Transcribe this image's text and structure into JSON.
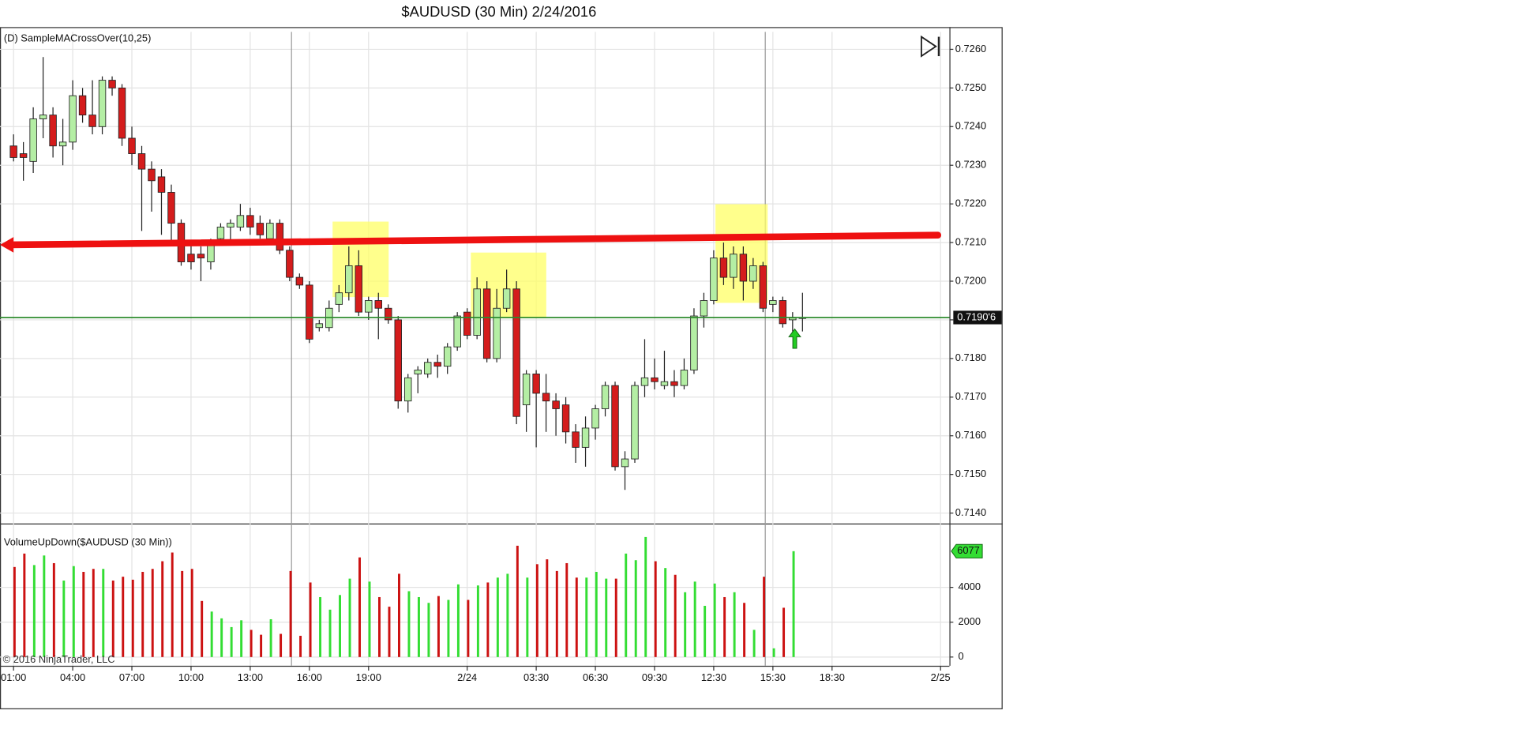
{
  "chart_data": [
    {
      "type": "candlestick",
      "title": "$AUDUSD (30 Min)  2/24/2016",
      "indicator_label": "(D) SampleMACrossOver(10,25)",
      "copyright": "© 2016 NinjaTrader, LLC",
      "categories": [
        "01:00",
        null,
        null,
        null,
        null,
        null,
        "04:00",
        null,
        null,
        null,
        null,
        null,
        "07:00",
        null,
        null,
        null,
        null,
        null,
        "10:00",
        null,
        null,
        null,
        null,
        null,
        "13:00",
        null,
        null,
        null,
        null,
        null,
        "16:00",
        null,
        null,
        null,
        null,
        null,
        "19:00",
        null,
        null,
        null,
        null,
        null,
        null,
        null,
        null,
        null,
        "2/24",
        null,
        null,
        null,
        null,
        null,
        null,
        "03:30",
        null,
        null,
        null,
        null,
        null,
        "06:30",
        null,
        null,
        null,
        null,
        null,
        "09:30",
        null,
        null,
        null,
        null,
        null,
        "12:30",
        null,
        null,
        null,
        null,
        null,
        "15:30",
        null,
        null,
        null,
        null,
        null,
        "18:30",
        null,
        null,
        null,
        null,
        null,
        null,
        null,
        null,
        null,
        null,
        "2/25"
      ],
      "open": [
        0.7235,
        0.7233,
        0.7231,
        0.7242,
        0.7243,
        0.7235,
        0.7236,
        0.7248,
        0.7243,
        0.724,
        0.7252,
        0.725,
        0.7237,
        0.7233,
        0.7229,
        0.7227,
        0.7223,
        0.7215,
        0.7207,
        0.7207,
        0.7205,
        0.7211,
        0.7214,
        0.7214,
        0.7217,
        0.7215,
        0.7211,
        0.7215,
        0.7208,
        0.7201,
        0.7199,
        0.7188,
        0.7188,
        0.7194,
        0.7197,
        0.7204,
        0.7192,
        0.7195,
        0.7193,
        0.719,
        0.7169,
        0.7176,
        0.7176,
        0.7179,
        0.7178,
        0.7183,
        0.7192,
        0.7186,
        0.7198,
        0.718,
        0.7193,
        0.7198,
        0.7168,
        0.7176,
        0.7171,
        0.7169,
        0.7168,
        0.7161,
        0.7157,
        0.7162,
        0.7167,
        0.7173,
        0.7152,
        0.7154,
        0.7173,
        0.7175,
        0.7173,
        0.7174,
        0.7173,
        0.7177,
        0.7191,
        0.7195,
        0.7206,
        0.7201,
        0.7207,
        0.72,
        0.7204,
        0.7194,
        0.7195,
        0.719,
        0.71905,
        null,
        null,
        null,
        null,
        null,
        null,
        null,
        null,
        null,
        null,
        null,
        null,
        null,
        null
      ],
      "high": [
        0.7238,
        0.7236,
        0.7245,
        0.7258,
        0.7245,
        0.7242,
        0.7252,
        0.725,
        0.7252,
        0.7253,
        0.7253,
        0.7251,
        0.724,
        0.7235,
        0.7231,
        0.7229,
        0.7225,
        0.7216,
        0.721,
        0.7209,
        0.7211,
        0.7215,
        0.7216,
        0.722,
        0.7219,
        0.7217,
        0.7216,
        0.7216,
        0.7209,
        0.7202,
        0.72,
        0.719,
        0.7195,
        0.7199,
        0.7209,
        0.7208,
        0.7196,
        0.7197,
        0.7194,
        0.7191,
        0.7176,
        0.7178,
        0.718,
        0.7181,
        0.7184,
        0.7192,
        0.7193,
        0.7201,
        0.72,
        0.7198,
        0.7203,
        0.72,
        0.7177,
        0.7177,
        0.7176,
        0.7171,
        0.717,
        0.7163,
        0.7165,
        0.7168,
        0.7174,
        0.7174,
        0.7156,
        0.7174,
        0.7185,
        0.718,
        0.7182,
        0.7177,
        0.718,
        0.7193,
        0.7197,
        0.7208,
        0.721,
        0.7209,
        0.7209,
        0.7206,
        0.7205,
        0.7196,
        0.7196,
        0.7192,
        0.7197,
        null,
        null,
        null,
        null,
        null,
        null,
        null,
        null,
        null,
        null,
        null,
        null,
        null,
        null
      ],
      "low": [
        0.7231,
        0.7226,
        0.7228,
        0.7237,
        0.7232,
        0.723,
        0.7234,
        0.7241,
        0.7238,
        0.7238,
        0.7248,
        0.7235,
        0.723,
        0.7213,
        0.7218,
        0.7212,
        0.721,
        0.7204,
        0.7203,
        0.72,
        0.7203,
        0.721,
        0.721,
        0.7213,
        0.7212,
        0.7211,
        0.721,
        0.7207,
        0.72,
        0.7198,
        0.7184,
        0.7187,
        0.7187,
        0.7192,
        0.7195,
        0.7191,
        0.719,
        0.7185,
        0.7189,
        0.7167,
        0.7166,
        0.7171,
        0.7175,
        0.7175,
        0.7176,
        0.7182,
        0.7185,
        0.7185,
        0.7179,
        0.7179,
        0.7192,
        0.7163,
        0.7161,
        0.7157,
        0.7161,
        0.716,
        0.7158,
        0.7153,
        0.7152,
        0.7159,
        0.7165,
        0.7151,
        0.7146,
        0.7153,
        0.717,
        0.7172,
        0.7172,
        0.717,
        0.7172,
        0.7176,
        0.7188,
        0.7194,
        0.7199,
        0.7198,
        0.7195,
        0.7198,
        0.7192,
        0.7192,
        0.7188,
        0.7187,
        0.7187,
        null,
        null,
        null,
        null,
        null,
        null,
        null,
        null,
        null,
        null,
        null,
        null,
        null,
        null
      ],
      "close": [
        0.7232,
        0.7232,
        0.7242,
        0.7243,
        0.7235,
        0.7236,
        0.7248,
        0.7243,
        0.724,
        0.7252,
        0.725,
        0.7237,
        0.7233,
        0.7229,
        0.7226,
        0.7223,
        0.7215,
        0.7205,
        0.7205,
        0.7206,
        0.721,
        0.7214,
        0.7215,
        0.7217,
        0.7214,
        0.7212,
        0.7215,
        0.7208,
        0.7201,
        0.7199,
        0.7185,
        0.7189,
        0.7193,
        0.7197,
        0.7204,
        0.7192,
        0.7195,
        0.7193,
        0.719,
        0.7169,
        0.7175,
        0.7177,
        0.7179,
        0.7178,
        0.7183,
        0.7191,
        0.7186,
        0.7198,
        0.718,
        0.7193,
        0.7198,
        0.7165,
        0.7176,
        0.7171,
        0.7169,
        0.7167,
        0.7161,
        0.7157,
        0.7162,
        0.7167,
        0.7173,
        0.7152,
        0.7154,
        0.7173,
        0.7175,
        0.7174,
        0.7174,
        0.7173,
        0.7177,
        0.7191,
        0.7195,
        0.7206,
        0.7201,
        0.7207,
        0.72,
        0.7204,
        0.7193,
        0.7195,
        0.7189,
        0.71905,
        0.71906,
        null,
        null,
        null,
        null,
        null,
        null,
        null,
        null,
        null,
        null,
        null,
        null,
        null,
        null
      ],
      "up_color": "#b4eea4",
      "down_color": "#d41c1c",
      "last_price": 0.71906,
      "last_price_label": "0.7190'6",
      "last_price_color": "#2e8b2e",
      "ylim": [
        0.71373,
        0.72645
      ],
      "yticks": [
        {
          "value": 0.714,
          "label": "0.7140"
        },
        {
          "value": 0.715,
          "label": "0.7150"
        },
        {
          "value": 0.716,
          "label": "0.7160"
        },
        {
          "value": 0.717,
          "label": "0.7170"
        },
        {
          "value": 0.718,
          "label": "0.7180"
        },
        {
          "value": 0.719,
          "label": "0.7190"
        },
        {
          "value": 0.72,
          "label": "0.7200"
        },
        {
          "value": 0.721,
          "label": "0.7210"
        },
        {
          "value": 0.722,
          "label": "0.7220"
        },
        {
          "value": 0.723,
          "label": "0.7230"
        },
        {
          "value": 0.724,
          "label": "0.7240"
        },
        {
          "value": 0.725,
          "label": "0.7250"
        },
        {
          "value": 0.726,
          "label": "0.7260"
        }
      ],
      "grid": true
    },
    {
      "type": "bar",
      "indicator_label": "VolumeUpDown($AUDUSD (30 Min))",
      "values": [
        5170,
        5940,
        5280,
        5830,
        5390,
        4390,
        5220,
        4890,
        5060,
        5060,
        4390,
        4610,
        4440,
        4890,
        5060,
        5500,
        6000,
        4940,
        5060,
        3220,
        2610,
        2220,
        1720,
        2110,
        1560,
        1280,
        2170,
        1330,
        4940,
        1220,
        4280,
        3440,
        2720,
        3560,
        4500,
        5720,
        4330,
        3440,
        2890,
        4780,
        3780,
        3440,
        3110,
        3500,
        3280,
        4170,
        3280,
        4110,
        4280,
        4560,
        4780,
        6390,
        4560,
        5330,
        5610,
        4940,
        5390,
        4560,
        4560,
        4890,
        4500,
        4500,
        5940,
        5560,
        6890,
        5500,
        5110,
        4720,
        3720,
        4330,
        2940,
        4220,
        3440,
        3720,
        3110,
        1560,
        4610,
        500,
        2830,
        6077,
        null,
        null,
        null,
        null,
        null,
        null,
        null,
        null,
        null,
        null,
        null,
        null,
        null,
        null,
        null
      ],
      "up_color": "#33dd33",
      "down_color": "#cc1111",
      "ylim": [
        -500,
        7444
      ],
      "yticks": [
        0,
        2000,
        4000
      ],
      "grid": true
    }
  ]
}
